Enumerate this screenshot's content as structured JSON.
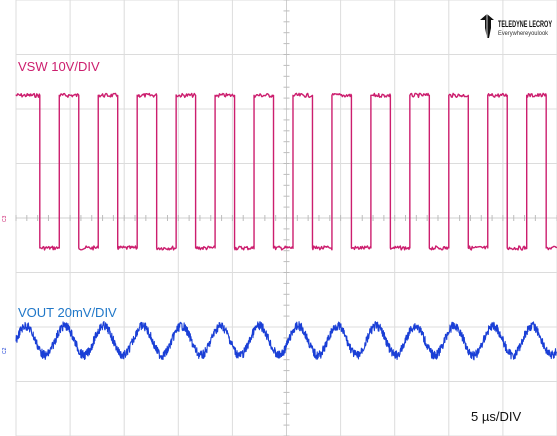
{
  "brand": {
    "name": "TELEDYNE LECROY",
    "tagline": "Everywhereyoulook",
    "logo_icon": "teledyne-logo-icon"
  },
  "channels": [
    {
      "label": "VSW 10V/DIV",
      "marker": "C3",
      "color": "#cc1e6e"
    },
    {
      "label": "VOUT 20mV/DIV",
      "marker": "C2",
      "color": "#1a3fd6",
      "label_color": "#1f77c8"
    }
  ],
  "timebase": "5 µs/DIV",
  "chart_data": {
    "type": "line",
    "title": "",
    "xlabel": "",
    "ylabel": "",
    "grid": true,
    "grid_divisions": {
      "x": 10,
      "y": 8
    },
    "x_unit": "µs",
    "time_per_div_us": 5,
    "xlim": [
      0,
      50
    ],
    "series": [
      {
        "name": "VSW 10V/DIV",
        "kind": "square",
        "units_per_div": "10V",
        "high_div": 2.25,
        "low_div": -0.55,
        "period_us": 3.6,
        "duty": 0.5,
        "first_rise_us": 0.4,
        "color": "#cc1e6e"
      },
      {
        "name": "VOUT 20mV/DIV",
        "kind": "sine",
        "units_per_div": "20mV",
        "offset_div": -2.25,
        "amplitude_div": 0.27,
        "period_us": 3.6,
        "color": "#1a3fd6"
      }
    ]
  }
}
